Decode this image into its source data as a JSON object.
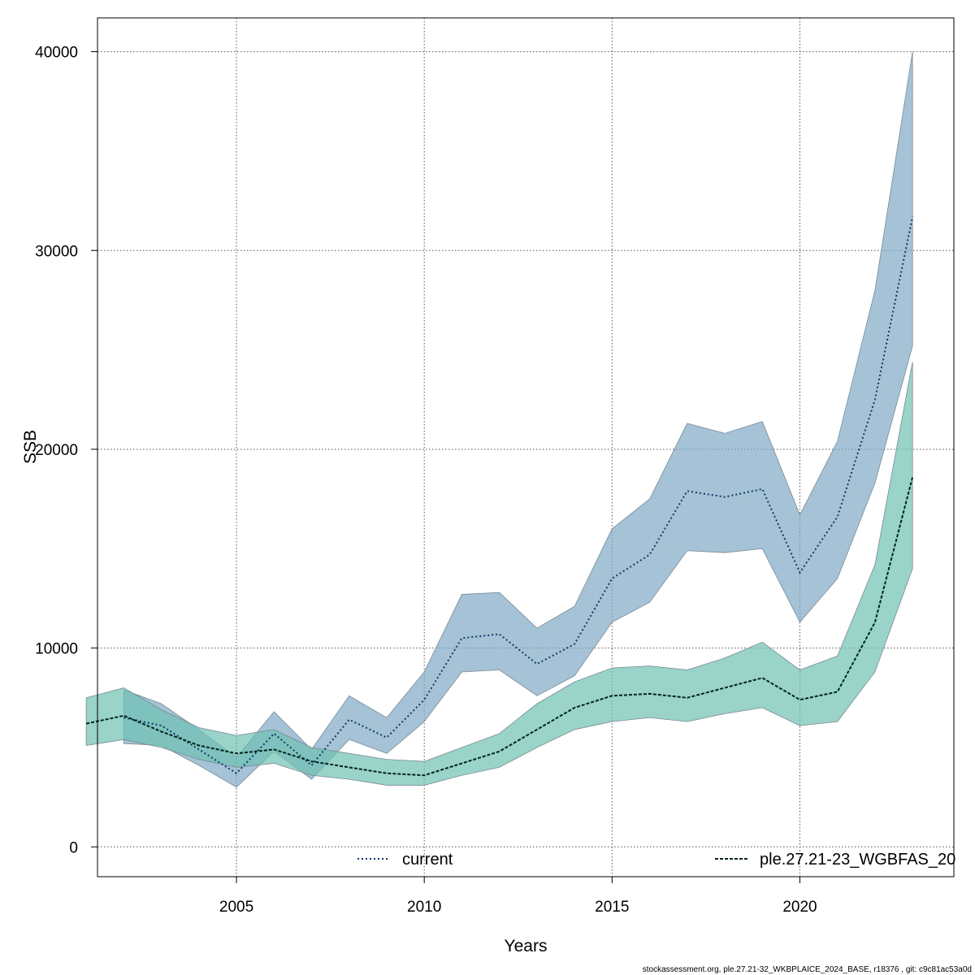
{
  "chart_data": {
    "type": "area",
    "xlabel": "Years",
    "ylabel": "SSB",
    "xlim": [
      2001.3,
      2024.1
    ],
    "ylim": [
      -1500,
      41700
    ],
    "xticks": [
      2005,
      2010,
      2015,
      2020
    ],
    "yticks": [
      0,
      10000,
      20000,
      30000,
      40000
    ],
    "grid": true,
    "legend_placement": "bottom",
    "series": [
      {
        "name": "current",
        "line_color": "#0b3b6b",
        "band_color": "#7fa8c4",
        "line_style": "dotted",
        "x": [
          2002,
          2003,
          2004,
          2005,
          2006,
          2007,
          2008,
          2009,
          2010,
          2011,
          2012,
          2013,
          2014,
          2015,
          2016,
          2017,
          2018,
          2019,
          2020,
          2021,
          2022,
          2023
        ],
        "values": [
          6500,
          6100,
          4900,
          3700,
          5700,
          4100,
          6400,
          5500,
          7400,
          10500,
          10700,
          9200,
          10200,
          13500,
          14700,
          17900,
          17600,
          18000,
          13800,
          16600,
          22500,
          31700
        ],
        "lower": [
          5200,
          5100,
          4100,
          3000,
          4800,
          3400,
          5400,
          4700,
          6300,
          8800,
          8900,
          7600,
          8600,
          11300,
          12300,
          14900,
          14800,
          15000,
          11300,
          13500,
          18300,
          25200
        ],
        "upper": [
          7900,
          7200,
          5900,
          4500,
          6800,
          4900,
          7600,
          6500,
          8800,
          12700,
          12800,
          11000,
          12100,
          16000,
          17500,
          21300,
          20800,
          21400,
          16700,
          20400,
          28000,
          40000
        ]
      },
      {
        "name": "ple.27.21-23_WGBFAS_20",
        "line_color": "#00241c",
        "band_color": "#6fc1b0",
        "line_style": "dashed",
        "x": [
          2001,
          2002,
          2003,
          2004,
          2005,
          2006,
          2007,
          2008,
          2009,
          2010,
          2011,
          2012,
          2013,
          2014,
          2015,
          2016,
          2017,
          2018,
          2019,
          2020,
          2021,
          2022,
          2023
        ],
        "values": [
          6200,
          6600,
          5800,
          5100,
          4700,
          4900,
          4300,
          4000,
          3700,
          3600,
          4200,
          4800,
          5900,
          7000,
          7600,
          7700,
          7500,
          8000,
          8500,
          7400,
          7800,
          11300,
          18600
        ],
        "lower": [
          5100,
          5400,
          5000,
          4400,
          4000,
          4200,
          3600,
          3400,
          3100,
          3100,
          3600,
          4000,
          5000,
          5900,
          6300,
          6500,
          6300,
          6700,
          7000,
          6100,
          6300,
          8800,
          14000
        ],
        "upper": [
          7500,
          8000,
          6900,
          6000,
          5600,
          5900,
          5000,
          4700,
          4400,
          4300,
          5000,
          5700,
          7200,
          8300,
          9000,
          9100,
          8900,
          9500,
          10300,
          8900,
          9600,
          14200,
          24400
        ]
      }
    ]
  },
  "footer": "stockassessment.org, ple.27.21-32_WKBPLAICE_2024_BASE, r18376 , git: c9c81ac53a0d"
}
